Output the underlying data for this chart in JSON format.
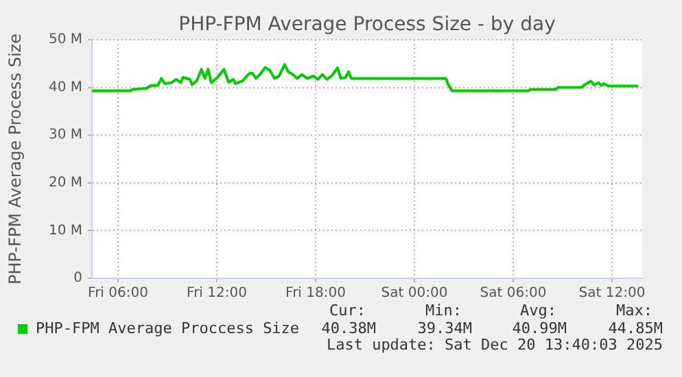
{
  "chart_data": {
    "type": "line",
    "title": "PHP-FPM Average Process Size - by day",
    "ylabel": "PHP-FPM Average Process Size",
    "x": [
      "2025-12-19T04:25",
      "2025-12-19T06:45",
      "2025-12-19T06:53",
      "2025-12-19T07:43",
      "2025-12-19T08:00",
      "2025-12-19T08:25",
      "2025-12-19T08:38",
      "2025-12-19T08:50",
      "2025-12-19T09:15",
      "2025-12-19T09:32",
      "2025-12-19T09:49",
      "2025-12-19T09:56",
      "2025-12-19T10:22",
      "2025-12-19T10:30",
      "2025-12-19T10:47",
      "2025-12-19T11:04",
      "2025-12-19T11:17",
      "2025-12-19T11:28",
      "2025-12-19T11:40",
      "2025-12-19T12:02",
      "2025-12-19T12:26",
      "2025-12-19T12:43",
      "2025-12-19T13:00",
      "2025-12-19T13:08",
      "2025-12-19T13:34",
      "2025-12-19T13:58",
      "2025-12-19T14:10",
      "2025-12-19T14:23",
      "2025-12-19T14:40",
      "2025-12-19T14:56",
      "2025-12-19T15:13",
      "2025-12-19T15:30",
      "2025-12-19T15:47",
      "2025-12-19T16:07",
      "2025-12-19T16:20",
      "2025-12-19T16:37",
      "2025-12-19T16:53",
      "2025-12-19T17:10",
      "2025-12-19T17:30",
      "2025-12-19T17:52",
      "2025-12-19T18:08",
      "2025-12-19T18:25",
      "2025-12-19T18:41",
      "2025-12-19T18:58",
      "2025-12-19T19:20",
      "2025-12-19T19:32",
      "2025-12-19T19:49",
      "2025-12-19T20:00",
      "2025-12-19T20:10",
      "2025-12-20T01:55",
      "2025-12-20T02:04",
      "2025-12-20T02:17",
      "2025-12-20T06:55",
      "2025-12-20T07:04",
      "2025-12-20T08:35",
      "2025-12-20T08:43",
      "2025-12-20T10:07",
      "2025-12-20T10:32",
      "2025-12-20T10:43",
      "2025-12-20T10:56",
      "2025-12-20T11:10",
      "2025-12-20T11:22",
      "2025-12-20T11:30",
      "2025-12-20T11:47",
      "2025-12-20T13:35"
    ],
    "series": [
      {
        "name": "PHP-FPM Average Proccess Size",
        "color": "#00cc00",
        "values": [
          39.3,
          39.3,
          39.6,
          39.8,
          40.4,
          40.4,
          41.9,
          40.8,
          41.0,
          41.7,
          41.0,
          42.1,
          41.7,
          40.6,
          41.4,
          43.8,
          41.9,
          43.8,
          41.0,
          42.1,
          43.8,
          41.1,
          41.7,
          40.8,
          41.4,
          42.9,
          43.0,
          41.9,
          42.9,
          44.2,
          43.6,
          41.9,
          42.4,
          44.8,
          43.3,
          42.7,
          41.9,
          42.7,
          41.9,
          42.4,
          41.7,
          42.7,
          41.7,
          42.4,
          44.1,
          41.9,
          42.1,
          43.3,
          41.9,
          41.9,
          40.5,
          39.3,
          39.3,
          39.6,
          39.6,
          40.0,
          40.0,
          41.0,
          41.3,
          40.5,
          41.0,
          40.4,
          40.8,
          40.3,
          40.3
        ]
      }
    ],
    "xlim": [
      "2025-12-19T04:25",
      "2025-12-20T13:50"
    ],
    "xticks": [
      {
        "value": "2025-12-19T06:00",
        "label": "Fri 06:00"
      },
      {
        "value": "2025-12-19T12:00",
        "label": "Fri 12:00"
      },
      {
        "value": "2025-12-19T18:00",
        "label": "Fri 18:00"
      },
      {
        "value": "2025-12-20T00:00",
        "label": "Sat 00:00"
      },
      {
        "value": "2025-12-20T06:00",
        "label": "Sat 06:00"
      },
      {
        "value": "2025-12-20T12:00",
        "label": "Sat 12:00"
      }
    ],
    "ylim": [
      0,
      50
    ],
    "yticks": [
      {
        "value": 0,
        "label": "0"
      },
      {
        "value": 10,
        "label": "10 M"
      },
      {
        "value": 20,
        "label": "20 M"
      },
      {
        "value": 30,
        "label": "30 M"
      },
      {
        "value": 40,
        "label": "40 M"
      },
      {
        "value": 50,
        "label": "50 M"
      }
    ],
    "grid": true,
    "legend": "bottom",
    "marker": "none",
    "line_style": "solid",
    "annotations": [
      "Cur:",
      "Min:",
      "Avg:",
      "Max:",
      "40.38M",
      "39.34M",
      "40.99M",
      "44.85M",
      "Last update: Sat Dec 20 13:40:03 2025"
    ]
  }
}
